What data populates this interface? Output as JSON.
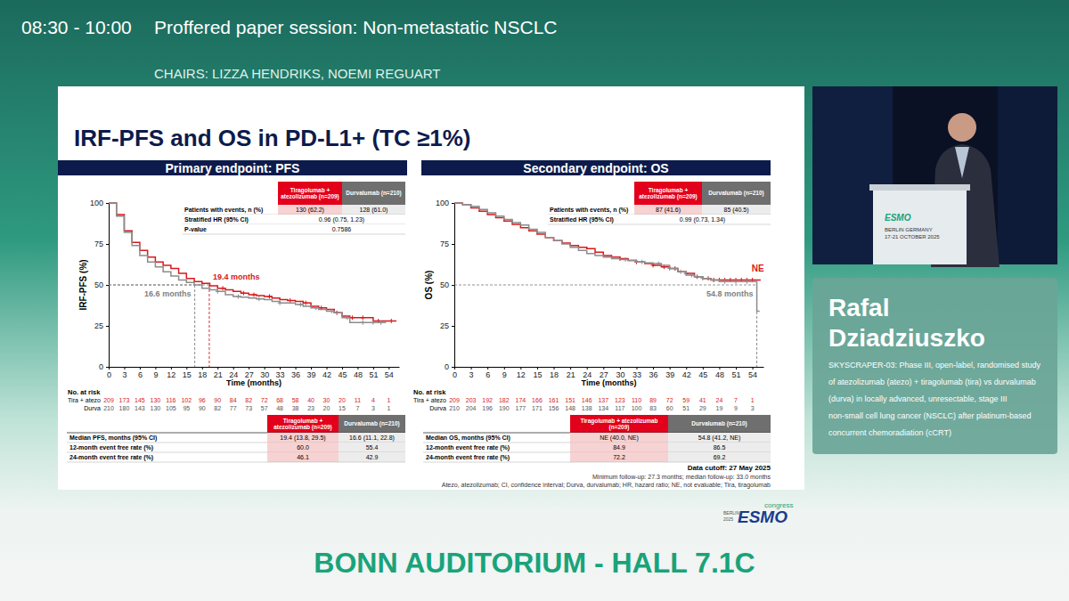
{
  "page": {
    "session_time": "08:30 - 10:00",
    "session_title": "Proffered paper session: Non-metastatic NSCLC",
    "chairs": "CHAIRS: LIZZA HENDRIKS, NOEMI REGUART",
    "slide_title": "IRF-PFS and OS in PD-L1+ (TC ≥1%)",
    "data_cutoff": "Data cutoff: 27 May 2025",
    "follow_up": "Minimum follow-up: 27.3 months; median follow-up: 33.0 months",
    "abbreviations": "Atezo, atezolizumab; CI, confidence interval; Durva, durvalumab; HR, hazard ratio; NE, not evaluable; Tira, tiragolumab",
    "logo": {
      "city": "BERLIN",
      "year": "2025",
      "brand": "ESMO",
      "word": "congress"
    },
    "podium": {
      "brand": "ESMO",
      "place": "BERLIN GERMANY",
      "dates": "17-21 OCTOBER 2025"
    },
    "speaker": {
      "name": "Rafal Dziadziuszko",
      "study": "SKYSCRAPER-03: Phase III, open-label, randomised study of atezolizumab (atezo) + tiragolumab (tira) vs durvalumab (durva) in locally advanced, unresectable, stage III non-small cell lung cancer (NSCLC) after platinum-based concurrent chemoradiation (cCRT)"
    },
    "venue": "BONN AUDITORIUM - HALL 7.1C"
  },
  "chart_data": [
    {
      "type": "line",
      "title": "Primary endpoint: PFS",
      "ylabel": "IRF-PFS (%)",
      "xlabel": "Time (months)",
      "xlim": [
        0,
        56
      ],
      "ylim": [
        0,
        100
      ],
      "xticks": [
        0,
        3,
        6,
        9,
        12,
        15,
        18,
        21,
        24,
        27,
        30,
        33,
        36,
        39,
        42,
        45,
        48,
        51,
        54
      ],
      "yticks": [
        0,
        25,
        50,
        75,
        100
      ],
      "line_style": "step",
      "marker": "plus",
      "series": [
        {
          "name": "Tiragolumab + atezolizumab (n=209)",
          "color": "#d7191c",
          "x": [
            0,
            1.5,
            3,
            4.5,
            6,
            7.5,
            9,
            10.5,
            12,
            13.5,
            15,
            16.5,
            18,
            19.5,
            21,
            22.5,
            24,
            25.5,
            27,
            28.5,
            30,
            31.5,
            33,
            34.5,
            36,
            37.5,
            39,
            40.5,
            42,
            43.5,
            45,
            46.5,
            48,
            49.5,
            51,
            52.5,
            54,
            55.5
          ],
          "values": [
            100,
            93,
            83,
            76,
            71,
            67,
            64,
            62,
            60,
            57,
            54,
            52,
            51,
            49.5,
            48,
            47,
            46.1,
            45,
            44,
            43.5,
            43,
            42,
            41,
            40.5,
            40,
            39,
            37,
            36,
            35,
            33,
            31,
            30,
            30,
            30,
            28,
            28,
            28,
            28
          ],
          "censored": [
            22,
            26,
            28,
            31,
            35,
            38,
            41,
            44,
            47,
            49,
            52,
            54.5
          ]
        },
        {
          "name": "Durvalumab (n=210)",
          "color": "#8c8c8c",
          "x": [
            0,
            1.5,
            3,
            4.5,
            6,
            7.5,
            9,
            10.5,
            12,
            13.5,
            15,
            16.5,
            18,
            19.5,
            21,
            22.5,
            24,
            25.5,
            27,
            28.5,
            30,
            31.5,
            33,
            34.5,
            36,
            37.5,
            39,
            40.5,
            42,
            43.5,
            45,
            46.5,
            48,
            49.5,
            51,
            52.5,
            53.5
          ],
          "values": [
            100,
            92,
            82,
            74,
            68,
            64,
            61,
            58,
            55.4,
            53,
            51.5,
            50,
            48,
            47,
            46,
            44,
            42.9,
            42.5,
            42,
            41.5,
            41,
            40,
            39,
            39,
            38,
            37,
            36,
            35,
            34,
            33,
            30,
            27,
            27,
            27,
            27,
            27,
            27
          ],
          "censored": [
            21,
            25,
            29,
            33,
            37,
            40,
            43,
            46,
            49,
            51,
            52.5
          ]
        }
      ],
      "medians": [
        {
          "x": 19.4,
          "y": 50,
          "label": "19.4 months",
          "color": "#d7191c"
        },
        {
          "x": 16.6,
          "y": 50,
          "label": "16.6 months",
          "color": "#7f7f7f"
        }
      ],
      "labels": [],
      "events_table": {
        "rows": [
          {
            "label": "Patients with events, n (%)",
            "values": [
              "130 (62.2)",
              "128 (61.0)"
            ]
          },
          {
            "label": "Stratified HR (95% CI)",
            "values": [
              "0.96 (0.75, 1.23)"
            ]
          },
          {
            "label": "P-value",
            "values": [
              "0.7586"
            ]
          }
        ]
      },
      "risk_table": {
        "title": "No. at risk",
        "rows": [
          {
            "label": "Tira + atezo",
            "values": [
              209,
              173,
              145,
              130,
              116,
              102,
              96,
              90,
              84,
              82,
              72,
              68,
              58,
              40,
              30,
              20,
              11,
              4,
              1
            ]
          },
          {
            "label": "Durva",
            "values": [
              210,
              180,
              143,
              130,
              105,
              95,
              90,
              82,
              77,
              73,
              57,
              48,
              38,
              23,
              20,
              15,
              7,
              3,
              1
            ]
          }
        ]
      },
      "summary_table": {
        "rows": [
          {
            "label": "Median PFS, months (95% CI)",
            "values": [
              "19.4 (13.8, 29.5)",
              "16.6 (11.1, 22.8)"
            ]
          },
          {
            "label": "12-month event free rate (%)",
            "values": [
              "60.0",
              "55.4"
            ]
          },
          {
            "label": "24-month event free rate (%)",
            "values": [
              "46.1",
              "42.9"
            ]
          }
        ]
      }
    },
    {
      "type": "line",
      "title": "Secondary endpoint: OS",
      "ylabel": "OS (%)",
      "xlabel": "Time (months)",
      "xlim": [
        0,
        56
      ],
      "ylim": [
        0,
        100
      ],
      "xticks": [
        0,
        3,
        6,
        9,
        12,
        15,
        18,
        21,
        24,
        27,
        30,
        33,
        36,
        39,
        42,
        45,
        48,
        51,
        54
      ],
      "yticks": [
        0,
        25,
        50,
        75,
        100
      ],
      "line_style": "step",
      "marker": "plus",
      "series": [
        {
          "name": "Tiragolumab + atezolizumab (n=209)",
          "color": "#d7191c",
          "x": [
            0,
            1.5,
            3,
            4.5,
            6,
            7.5,
            9,
            10.5,
            12,
            13.5,
            15,
            16.5,
            18,
            19.5,
            21,
            22.5,
            24,
            25.5,
            27,
            28.5,
            30,
            31.5,
            33,
            34.5,
            36,
            37.5,
            39,
            40.5,
            42,
            43.5,
            45,
            46.5,
            48,
            49.5,
            51,
            52.5,
            54,
            55.5
          ],
          "values": [
            100,
            99,
            97,
            95,
            93,
            91,
            89,
            87,
            84.9,
            83,
            81,
            79,
            77,
            75.5,
            74,
            73,
            72.2,
            70,
            68,
            67,
            66,
            65,
            64,
            63,
            62,
            61,
            60,
            58,
            57,
            55,
            54,
            53,
            53,
            53,
            53,
            53,
            53,
            53
          ],
          "censored": [
            30,
            33,
            36,
            38,
            40,
            42,
            44,
            46,
            47,
            48,
            49,
            50,
            51,
            52,
            53,
            54
          ]
        },
        {
          "name": "Durvalumab (n=210)",
          "color": "#8c8c8c",
          "x": [
            0,
            1.5,
            3,
            4.5,
            6,
            7.5,
            9,
            10.5,
            12,
            13.5,
            15,
            16.5,
            18,
            19.5,
            21,
            22.5,
            24,
            25.5,
            27,
            28.5,
            30,
            31.5,
            33,
            34.5,
            36,
            37.5,
            39,
            40.5,
            42,
            43.5,
            45,
            46.5,
            48,
            49.5,
            51,
            52.5,
            54,
            54.8,
            55.3
          ],
          "values": [
            100,
            99,
            98,
            96,
            94,
            92,
            90,
            88,
            86.5,
            84,
            82,
            79,
            77,
            75,
            73,
            71,
            69.2,
            68,
            67,
            66,
            65.5,
            65,
            64,
            63.5,
            63,
            62,
            60,
            58,
            56,
            55,
            54,
            53,
            52,
            52,
            52,
            52,
            52,
            34,
            34
          ],
          "censored": [
            31,
            34,
            37,
            39,
            41,
            43,
            45,
            47,
            49,
            51,
            53
          ]
        }
      ],
      "medians": [
        {
          "x": 54.8,
          "y": 50,
          "label": "54.8 months",
          "color": "#7f7f7f"
        }
      ],
      "labels": [
        {
          "text": "NE",
          "x": 55,
          "y": 58,
          "color": "#d7191c"
        }
      ],
      "events_table": {
        "rows": [
          {
            "label": "Patients with events, n (%)",
            "values": [
              "87 (41.6)",
              "85 (40.5)"
            ]
          },
          {
            "label": "Stratified HR (95% CI)",
            "values": [
              "0.99 (0.73, 1.34)"
            ]
          }
        ]
      },
      "risk_table": {
        "title": "No. at risk",
        "rows": [
          {
            "label": "Tira + atezo",
            "values": [
              209,
              203,
              192,
              182,
              174,
              166,
              161,
              151,
              146,
              137,
              123,
              110,
              89,
              72,
              59,
              41,
              24,
              7,
              1
            ]
          },
          {
            "label": "Durva",
            "values": [
              210,
              204,
              196,
              190,
              177,
              171,
              156,
              148,
              138,
              134,
              117,
              100,
              83,
              60,
              51,
              29,
              19,
              9,
              3
            ]
          }
        ]
      },
      "summary_table": {
        "rows": [
          {
            "label": "Median OS, months (95% CI)",
            "values": [
              "NE (40.0, NE)",
              "54.8 (41.2, NE)"
            ]
          },
          {
            "label": "12-month event free rate (%)",
            "values": [
              "84.9",
              "86.5"
            ]
          },
          {
            "label": "24-month event free rate (%)",
            "values": [
              "72.2",
              "69.2"
            ]
          }
        ]
      }
    }
  ]
}
